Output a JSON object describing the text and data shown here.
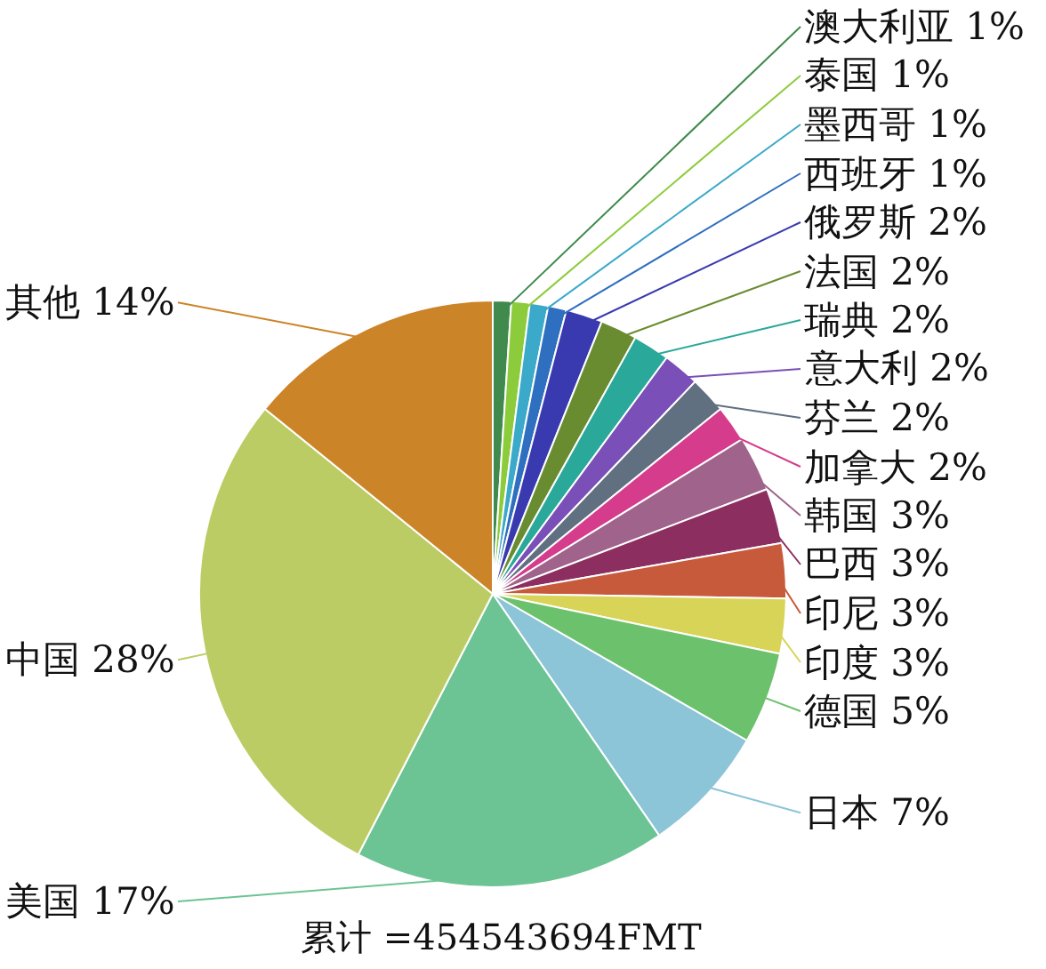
{
  "chart_data": {
    "type": "pie",
    "categories": [
      "澳大利亚",
      "泰国",
      "墨西哥",
      "西班牙",
      "俄罗斯",
      "法国",
      "瑞典",
      "意大利",
      "芬兰",
      "加拿大",
      "韩国",
      "巴西",
      "印尼",
      "印度",
      "德国",
      "日本",
      "美国",
      "中国",
      "其他"
    ],
    "values": [
      1,
      1,
      1,
      1,
      2,
      2,
      2,
      2,
      2,
      2,
      3,
      3,
      3,
      3,
      5,
      7,
      17,
      28,
      14
    ],
    "value_labels": [
      "1%",
      "1%",
      "1%",
      "1%",
      "2%",
      "2%",
      "2%",
      "2%",
      "2%",
      "2%",
      "3%",
      "3%",
      "3%",
      "3%",
      "5%",
      "7%",
      "17%",
      "28%",
      "14%"
    ],
    "colors": [
      "#3f8a4c",
      "#8ccc3c",
      "#3ba9c9",
      "#2f6fc0",
      "#3a3ab0",
      "#6a8c30",
      "#2aa89a",
      "#7a4fb8",
      "#607080",
      "#d63c8c",
      "#a0648c",
      "#8c2e60",
      "#c85a3c",
      "#d8d458",
      "#6cc26c",
      "#8cc4d8",
      "#6cc494",
      "#bccc64",
      "#cc8428"
    ],
    "annotations": [
      "累计 =454543694FMT"
    ]
  }
}
